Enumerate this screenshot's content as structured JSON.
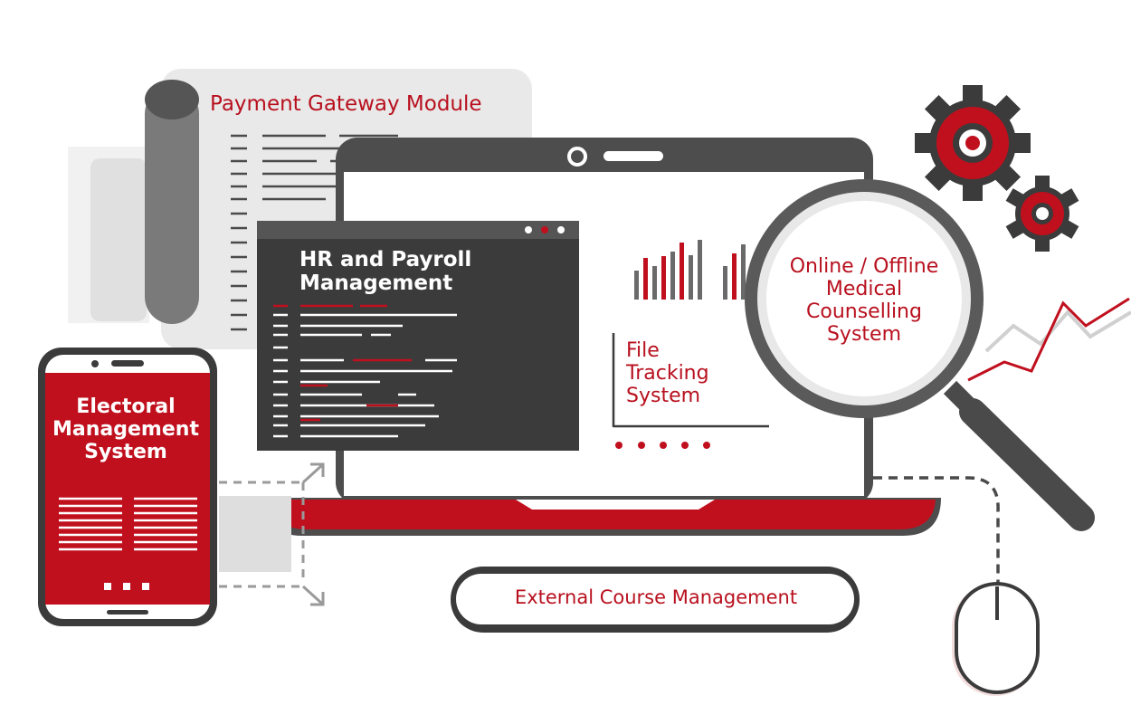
{
  "modules": {
    "payment_gateway": "Payment Gateway Module",
    "hr_payroll": "HR and Payroll\nManagement",
    "file_tracking": "File\nTracking\nSystem",
    "medical_counselling": "Online / Offline\nMedical\nCounselling\nSystem",
    "electoral": "Electoral\nManagement\nSystem",
    "external_course": "External Course Management"
  },
  "colors": {
    "accent_red": "#c0101e",
    "dark_gray": "#3b3b3b",
    "mid_gray": "#6a6a6a",
    "light_gray": "#e9e9e9"
  },
  "icons": [
    "gear-icon",
    "magnifier-icon",
    "mouse-icon",
    "smartphone-icon",
    "laptop-icon",
    "document-scroll-icon",
    "bar-chart-icon",
    "trend-line-icon",
    "arrow-icon"
  ]
}
